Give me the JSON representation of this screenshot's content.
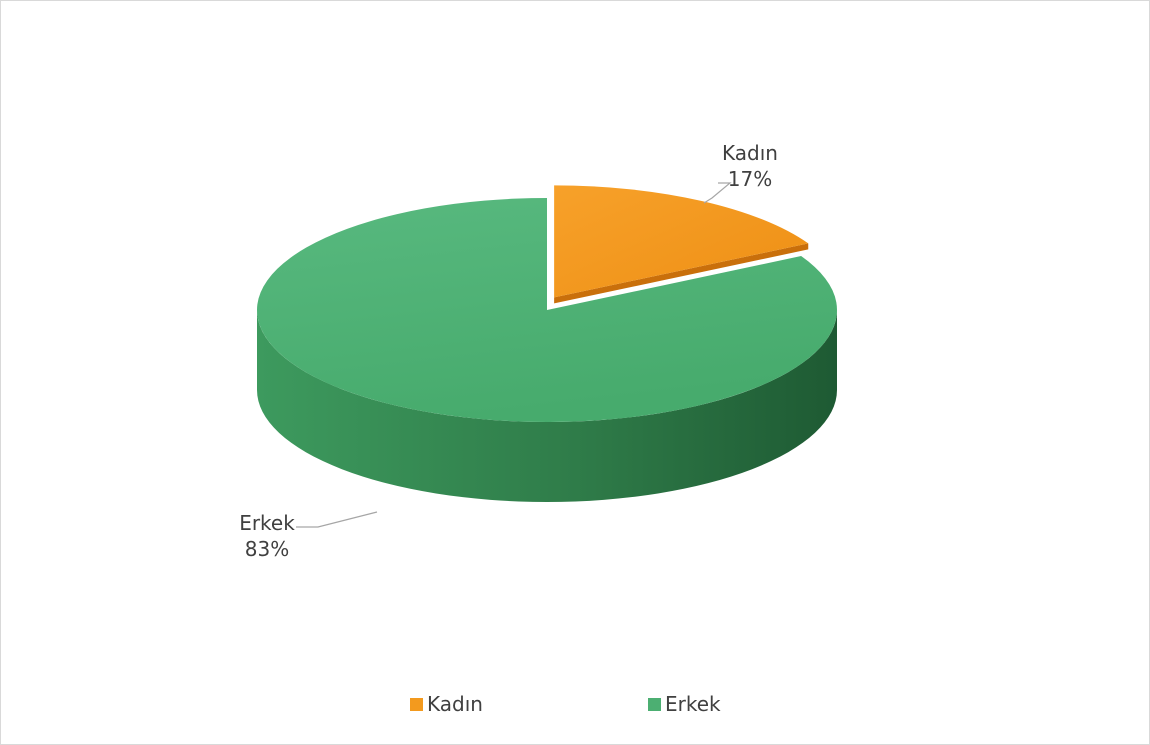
{
  "chart_data": {
    "type": "pie",
    "style": "3d-exploded",
    "slices": [
      {
        "label": "Kadın",
        "value": 17,
        "display": "17%",
        "color": "#f39a1e"
      },
      {
        "label": "Erkek",
        "value": 83,
        "display": "83%",
        "color": "#4caf72"
      }
    ],
    "legend": {
      "placement": "bottom",
      "items": [
        {
          "label": "Kadın",
          "color": "#f39a1e"
        },
        {
          "label": "Erkek",
          "color": "#4caf72"
        }
      ]
    }
  }
}
